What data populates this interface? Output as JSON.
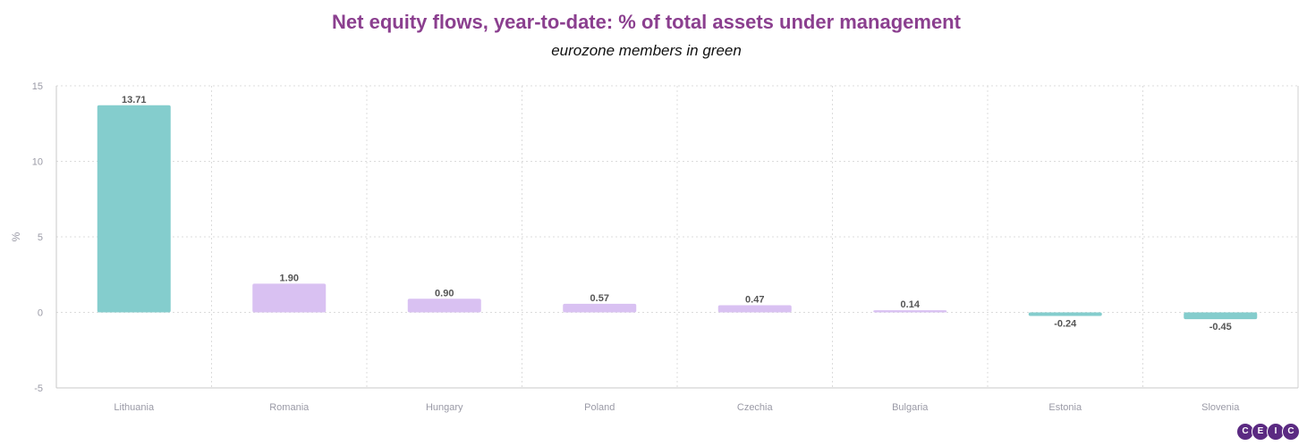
{
  "chart_data": {
    "type": "bar",
    "title": "Net equity flows, year-to-date: % of total assets under management",
    "subtitle": "eurozone members in green",
    "xlabel": "",
    "ylabel": "%",
    "ylim": [
      -5,
      15
    ],
    "yticks": [
      -5,
      0,
      5,
      10,
      15
    ],
    "grid": true,
    "categories": [
      "Lithuania",
      "Romania",
      "Hungary",
      "Poland",
      "Czechia",
      "Bulgaria",
      "Estonia",
      "Slovenia"
    ],
    "values": [
      13.71,
      1.9,
      0.9,
      0.57,
      0.47,
      0.14,
      -0.24,
      -0.45
    ],
    "labels": [
      "13.71",
      "1.90",
      "0.90",
      "0.57",
      "0.47",
      "0.14",
      "-0.24",
      "-0.45"
    ],
    "eurozone": [
      true,
      false,
      false,
      false,
      false,
      false,
      true,
      true
    ],
    "colors": {
      "eurozone": "#84cdcd",
      "other": "#d9c1f2"
    }
  },
  "logo": {
    "letters": [
      "C",
      "E",
      "I",
      "C"
    ]
  }
}
